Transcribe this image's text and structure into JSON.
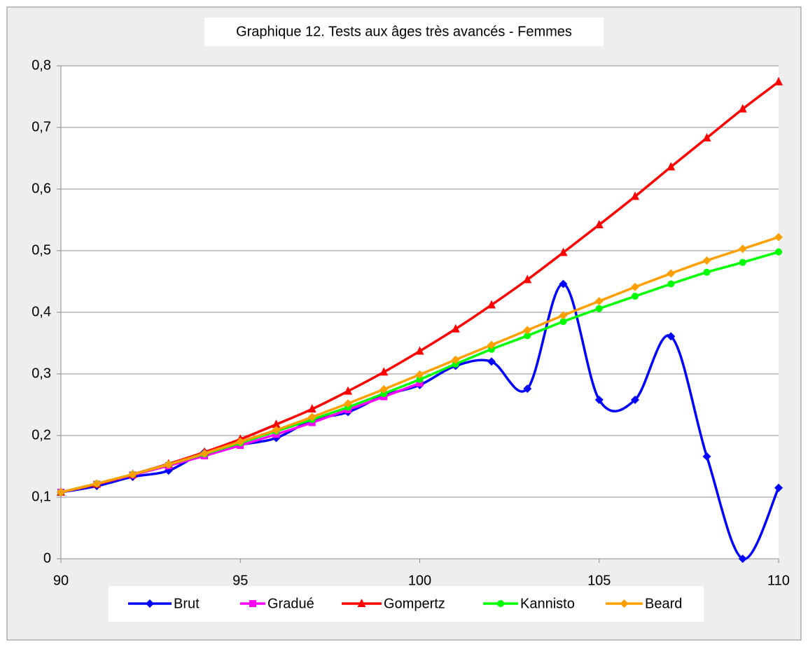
{
  "chart_data": {
    "type": "line",
    "title": "Graphique 12. Tests aux âges très avancés - Femmes",
    "x": [
      90,
      91,
      92,
      93,
      94,
      95,
      96,
      97,
      98,
      99,
      100,
      101,
      102,
      103,
      104,
      105,
      106,
      107,
      108,
      109,
      110
    ],
    "xlim": [
      90,
      110
    ],
    "xticks": [
      90,
      95,
      100,
      105,
      110
    ],
    "ylim": [
      0,
      0.8
    ],
    "yticks": [
      0,
      {
        "value": 0.1,
        "label": "0,1"
      },
      {
        "value": 0.2,
        "label": "0,2"
      },
      {
        "value": 0.3,
        "label": "0,3"
      },
      {
        "value": 0.4,
        "label": "0,4"
      },
      {
        "value": 0.5,
        "label": "0,5"
      },
      {
        "value": 0.6,
        "label": "0,6"
      },
      {
        "value": 0.7,
        "label": "0,7"
      },
      {
        "value": 0.8,
        "label": "0,8"
      }
    ],
    "grid": true,
    "smooth": true,
    "legend": "bottom",
    "series": [
      {
        "name": "Brut",
        "color": "#0000ff",
        "marker": "diamond",
        "values": [
          0.108,
          0.118,
          0.133,
          0.143,
          0.173,
          0.185,
          0.196,
          0.225,
          0.238,
          0.265,
          0.282,
          0.313,
          0.32,
          0.276,
          0.446,
          0.258,
          0.258,
          0.361,
          0.166,
          0.0,
          0.115
        ]
      },
      {
        "name": "Gradué",
        "color": "#ff00ff",
        "marker": "square",
        "values": [
          0.108,
          0.121,
          0.136,
          0.151,
          0.167,
          0.184,
          0.202,
          0.221,
          0.242,
          0.263,
          0.285,
          null,
          null,
          null,
          null,
          null,
          null,
          null,
          null,
          null,
          null
        ]
      },
      {
        "name": "Gompertz",
        "color": "#ff0000",
        "marker": "triangle",
        "values": [
          0.108,
          0.121,
          0.137,
          0.154,
          0.173,
          0.194,
          0.218,
          0.243,
          0.272,
          0.303,
          0.337,
          0.373,
          0.412,
          0.453,
          0.497,
          0.542,
          0.588,
          0.636,
          0.683,
          0.73,
          0.774
        ]
      },
      {
        "name": "Kannisto",
        "color": "#00ff00",
        "marker": "circle",
        "values": [
          0.108,
          0.122,
          0.137,
          0.153,
          0.17,
          0.188,
          0.207,
          0.226,
          0.246,
          0.268,
          0.291,
          0.316,
          0.34,
          0.362,
          0.385,
          0.406,
          0.426,
          0.446,
          0.465,
          0.481,
          0.498
        ]
      },
      {
        "name": "Beard",
        "color": "#ffa000",
        "marker": "diamond",
        "values": [
          0.108,
          0.122,
          0.137,
          0.153,
          0.171,
          0.19,
          0.209,
          0.23,
          0.252,
          0.275,
          0.299,
          0.323,
          0.347,
          0.371,
          0.395,
          0.418,
          0.441,
          0.463,
          0.484,
          0.503,
          0.522
        ]
      }
    ]
  }
}
